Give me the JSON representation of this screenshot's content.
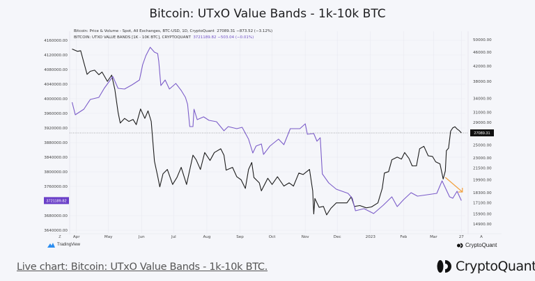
{
  "title": "Bitcoin: UTxO Value Bands - 1k-10k BTC",
  "legend": {
    "line1_label": "Bitcoin: Price & Volume - Spot, All Exchanges, BTC-USD, 1D, CryptoQuant",
    "line1_value": "27089.31  −873.52 (−3.12%)",
    "line2_label": "BITCOIN: UTXO VALUE BANDS [1K - 10K BTC], CRYPTOQUANT",
    "line2_value": "3721189.82  −503.04 (−0.01%)"
  },
  "tradingview_label": "TradingView",
  "cq_small_label": "CryptoQuant",
  "footer": {
    "link_text": "Live chart: Bitcoin: UTxO Value Bands - 1k-10k BTC.",
    "brand": "CryptoQuant"
  },
  "colors": {
    "price": "#1c1c1c",
    "band": "#7b5cc9",
    "badge_band": "#6a3fc8",
    "badge_price": "#111111",
    "arrow": "#f2a03d"
  },
  "chart_data": {
    "type": "line",
    "title": "Bitcoin: UTxO Value Bands - 1k-10k BTC",
    "x_start": "2022-03-27",
    "x_end": "2023-03-27",
    "x_ticks": [
      {
        "label": "Apr",
        "date": "2022-04-01"
      },
      {
        "label": "May",
        "date": "2022-05-01"
      },
      {
        "label": "Jun",
        "date": "2022-06-01"
      },
      {
        "label": "Jul",
        "date": "2022-07-01"
      },
      {
        "label": "Aug",
        "date": "2022-08-01"
      },
      {
        "label": "Sep",
        "date": "2022-09-01"
      },
      {
        "label": "Oct",
        "date": "2022-10-01"
      },
      {
        "label": "Nov",
        "date": "2022-11-01"
      },
      {
        "label": "Dec",
        "date": "2022-12-01"
      },
      {
        "label": "2023",
        "date": "2023-01-01"
      },
      {
        "label": "Feb",
        "date": "2023-02-01"
      },
      {
        "label": "Mar",
        "date": "2023-03-01"
      },
      {
        "label": "27",
        "date": "2023-03-27"
      }
    ],
    "left_axis": {
      "scale": "linear",
      "range": [
        3640000,
        4160000
      ],
      "ticks": [
        "4160000.00",
        "4120000.00",
        "4080000.00",
        "4040000.00",
        "4000000.00",
        "3960000.00",
        "3920000.00",
        "3880000.00",
        "3840000.00",
        "3800000.00",
        "3760000.00",
        "3680000.00",
        "3640000.00"
      ],
      "current_label": "3721189.82"
    },
    "right_axis": {
      "scale": "log",
      "range": [
        14900,
        50000
      ],
      "ticks": [
        "50000.00",
        "46000.00",
        "42000.00",
        "38000.00",
        "34000.00",
        "31000.00",
        "29000.00",
        "25000.00",
        "23000.00",
        "21500.00",
        "19900.00",
        "18300.00",
        "17100.00",
        "15900.00",
        "14900.00"
      ],
      "current_label": "27089.31"
    },
    "corner_labels": {
      "left": "Z",
      "right": "A"
    },
    "annotation": {
      "type": "arrow",
      "from": "2023-03-12",
      "to": "2023-03-28",
      "meaning": "declining band"
    },
    "series": [
      {
        "name": "Bitcoin Price (USD)",
        "axis": "right",
        "points": [
          [
            "2022-03-28",
            47000
          ],
          [
            "2022-04-02",
            46300
          ],
          [
            "2022-04-05",
            46500
          ],
          [
            "2022-04-08",
            43000
          ],
          [
            "2022-04-11",
            39800
          ],
          [
            "2022-04-14",
            40600
          ],
          [
            "2022-04-18",
            40900
          ],
          [
            "2022-04-22",
            39700
          ],
          [
            "2022-04-25",
            40400
          ],
          [
            "2022-04-30",
            38000
          ],
          [
            "2022-05-04",
            39600
          ],
          [
            "2022-05-07",
            36000
          ],
          [
            "2022-05-10",
            31000
          ],
          [
            "2022-05-12",
            28900
          ],
          [
            "2022-05-16",
            29800
          ],
          [
            "2022-05-20",
            29200
          ],
          [
            "2022-05-24",
            29600
          ],
          [
            "2022-05-27",
            28600
          ],
          [
            "2022-05-31",
            31700
          ],
          [
            "2022-06-04",
            29800
          ],
          [
            "2022-06-07",
            31300
          ],
          [
            "2022-06-10",
            29200
          ],
          [
            "2022-06-13",
            22500
          ],
          [
            "2022-06-16",
            20400
          ],
          [
            "2022-06-18",
            19000
          ],
          [
            "2022-06-21",
            20700
          ],
          [
            "2022-06-25",
            21300
          ],
          [
            "2022-06-30",
            19300
          ],
          [
            "2022-07-04",
            20200
          ],
          [
            "2022-07-08",
            21600
          ],
          [
            "2022-07-13",
            19300
          ],
          [
            "2022-07-19",
            23400
          ],
          [
            "2022-07-22",
            22700
          ],
          [
            "2022-07-26",
            21300
          ],
          [
            "2022-07-30",
            23800
          ],
          [
            "2022-08-04",
            22600
          ],
          [
            "2022-08-08",
            23800
          ],
          [
            "2022-08-14",
            24400
          ],
          [
            "2022-08-17",
            23400
          ],
          [
            "2022-08-19",
            21200
          ],
          [
            "2022-08-25",
            21600
          ],
          [
            "2022-08-29",
            20300
          ],
          [
            "2022-09-02",
            19900
          ],
          [
            "2022-09-06",
            18800
          ],
          [
            "2022-09-09",
            21300
          ],
          [
            "2022-09-12",
            22300
          ],
          [
            "2022-09-14",
            20200
          ],
          [
            "2022-09-19",
            19500
          ],
          [
            "2022-09-21",
            18500
          ],
          [
            "2022-09-27",
            20100
          ],
          [
            "2022-10-01",
            19300
          ],
          [
            "2022-10-06",
            20300
          ],
          [
            "2022-10-12",
            19100
          ],
          [
            "2022-10-17",
            19500
          ],
          [
            "2022-10-21",
            19100
          ],
          [
            "2022-10-26",
            20800
          ],
          [
            "2022-10-30",
            20600
          ],
          [
            "2022-11-05",
            21300
          ],
          [
            "2022-11-08",
            18500
          ],
          [
            "2022-11-09",
            15900
          ],
          [
            "2022-11-10",
            17600
          ],
          [
            "2022-11-14",
            16600
          ],
          [
            "2022-11-18",
            16700
          ],
          [
            "2022-11-21",
            15800
          ],
          [
            "2022-11-25",
            16500
          ],
          [
            "2022-11-30",
            17100
          ],
          [
            "2022-12-05",
            17100
          ],
          [
            "2022-12-10",
            17100
          ],
          [
            "2022-12-14",
            17800
          ],
          [
            "2022-12-17",
            16700
          ],
          [
            "2022-12-22",
            16800
          ],
          [
            "2022-12-28",
            16550
          ],
          [
            "2023-01-02",
            16650
          ],
          [
            "2023-01-08",
            17100
          ],
          [
            "2023-01-12",
            18800
          ],
          [
            "2023-01-14",
            20800
          ],
          [
            "2023-01-18",
            21000
          ],
          [
            "2023-01-21",
            22700
          ],
          [
            "2023-01-26",
            23100
          ],
          [
            "2023-01-30",
            22800
          ],
          [
            "2023-02-02",
            23800
          ],
          [
            "2023-02-06",
            22900
          ],
          [
            "2023-02-09",
            21800
          ],
          [
            "2023-02-13",
            21800
          ],
          [
            "2023-02-16",
            24400
          ],
          [
            "2023-02-20",
            24800
          ],
          [
            "2023-02-24",
            23300
          ],
          [
            "2023-02-28",
            23200
          ],
          [
            "2023-03-03",
            22400
          ],
          [
            "2023-03-07",
            22100
          ],
          [
            "2023-03-10",
            20000
          ],
          [
            "2023-03-12",
            21100
          ],
          [
            "2023-03-13",
            24100
          ],
          [
            "2023-03-15",
            24500
          ],
          [
            "2023-03-17",
            27400
          ],
          [
            "2023-03-19",
            28000
          ],
          [
            "2023-03-21",
            28200
          ],
          [
            "2023-03-23",
            27800
          ],
          [
            "2023-03-25",
            27500
          ],
          [
            "2023-03-27",
            27089.31
          ]
        ]
      },
      {
        "name": "UTXO Value Bands [1K - 10K BTC]",
        "axis": "left",
        "points": [
          [
            "2022-03-28",
            3990500
          ],
          [
            "2022-03-31",
            3956200
          ],
          [
            "2022-04-08",
            3971400
          ],
          [
            "2022-04-14",
            3998100
          ],
          [
            "2022-04-22",
            4003800
          ],
          [
            "2022-04-27",
            4028600
          ],
          [
            "2022-05-05",
            4061000
          ],
          [
            "2022-05-10",
            4028600
          ],
          [
            "2022-05-16",
            4026700
          ],
          [
            "2022-05-23",
            4038100
          ],
          [
            "2022-05-30",
            4051400
          ],
          [
            "2022-06-02",
            4093300
          ],
          [
            "2022-06-05",
            4118100
          ],
          [
            "2022-06-09",
            4141000
          ],
          [
            "2022-06-13",
            4127600
          ],
          [
            "2022-06-16",
            4123800
          ],
          [
            "2022-06-17",
            4102900
          ],
          [
            "2022-06-19",
            4036200
          ],
          [
            "2022-06-23",
            4051400
          ],
          [
            "2022-06-27",
            4026700
          ],
          [
            "2022-07-03",
            4041900
          ],
          [
            "2022-07-08",
            4022900
          ],
          [
            "2022-07-12",
            4003800
          ],
          [
            "2022-07-14",
            3984800
          ],
          [
            "2022-07-16",
            3923800
          ],
          [
            "2022-07-19",
            3923800
          ],
          [
            "2022-07-20",
            3971400
          ],
          [
            "2022-07-23",
            3942900
          ],
          [
            "2022-07-29",
            3950500
          ],
          [
            "2022-08-03",
            3941000
          ],
          [
            "2022-08-10",
            3937100
          ],
          [
            "2022-08-17",
            3912400
          ],
          [
            "2022-08-21",
            3923800
          ],
          [
            "2022-08-29",
            3918100
          ],
          [
            "2022-09-03",
            3921900
          ],
          [
            "2022-09-09",
            3889500
          ],
          [
            "2022-09-13",
            3851400
          ],
          [
            "2022-09-16",
            3870500
          ],
          [
            "2022-09-21",
            3876200
          ],
          [
            "2022-09-23",
            3847600
          ],
          [
            "2022-09-29",
            3870500
          ],
          [
            "2022-10-07",
            3889500
          ],
          [
            "2022-10-12",
            3874300
          ],
          [
            "2022-10-18",
            3918100
          ],
          [
            "2022-10-27",
            3918100
          ],
          [
            "2022-11-01",
            3931400
          ],
          [
            "2022-11-03",
            3902900
          ],
          [
            "2022-11-09",
            3904800
          ],
          [
            "2022-11-12",
            3883800
          ],
          [
            "2022-11-15",
            3893300
          ],
          [
            "2022-11-17",
            3794300
          ],
          [
            "2022-11-23",
            3769500
          ],
          [
            "2022-11-30",
            3752400
          ],
          [
            "2022-12-11",
            3740900
          ],
          [
            "2022-12-15",
            3727600
          ],
          [
            "2022-12-18",
            3693300
          ],
          [
            "2022-12-26",
            3699000
          ],
          [
            "2023-01-04",
            3685700
          ],
          [
            "2023-01-13",
            3708600
          ],
          [
            "2023-01-21",
            3731400
          ],
          [
            "2023-01-26",
            3704700
          ],
          [
            "2023-02-01",
            3723800
          ],
          [
            "2023-02-08",
            3742800
          ],
          [
            "2023-02-14",
            3733300
          ],
          [
            "2023-02-23",
            3737100
          ],
          [
            "2023-03-04",
            3740900
          ],
          [
            "2023-03-09",
            3775200
          ],
          [
            "2023-03-16",
            3731400
          ],
          [
            "2023-03-19",
            3727600
          ],
          [
            "2023-03-23",
            3746700
          ],
          [
            "2023-03-27",
            3721189.82
          ]
        ]
      }
    ]
  }
}
